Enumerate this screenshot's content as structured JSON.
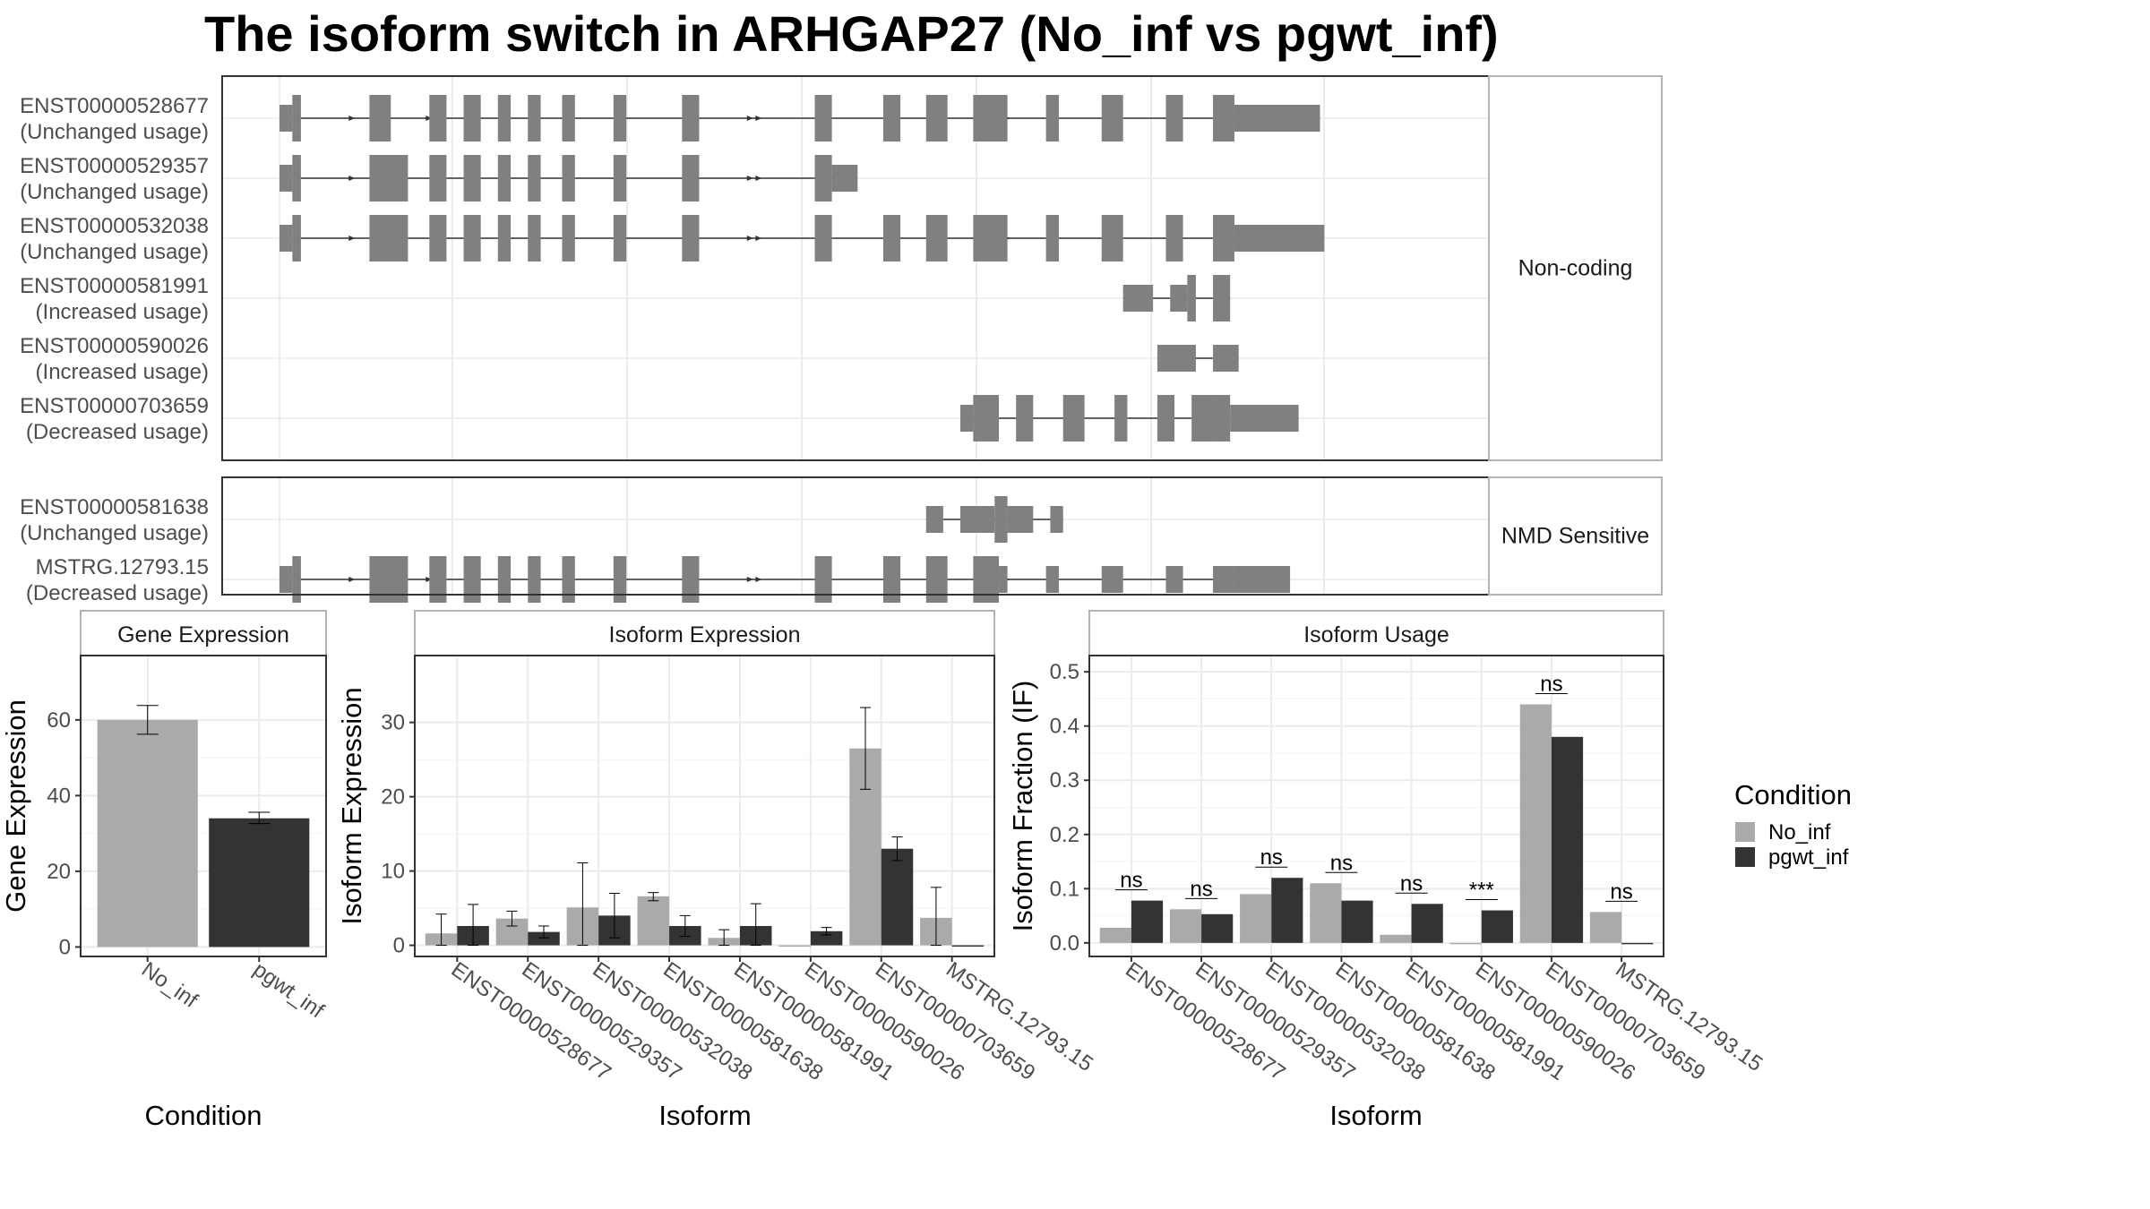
{
  "title": "The isoform switch in ARHGAP27 (No_inf vs pgwt_inf)",
  "colors": {
    "No_inf": "#aaaaaa",
    "pgwt_inf": "#333333",
    "exon": "#808080",
    "panel_border": "#333333",
    "strip_border": "#b3b3b3",
    "grid": "#ebebeb",
    "text_tick": "#4d4d4d"
  },
  "structure": {
    "groups": [
      {
        "label": "Non-coding",
        "tracks": [
          {
            "id": "ENST00000528677",
            "status": "(Unchanged usage)",
            "exons": [
              [
                0,
                3,
                0.3
              ],
              [
                3,
                5,
                0.5
              ],
              [
                21,
                26,
                0.5
              ],
              [
                35,
                39,
                0.5
              ],
              [
                43,
                47,
                0.5
              ],
              [
                51,
                54,
                0.5
              ],
              [
                58,
                61,
                0.5
              ],
              [
                66,
                69,
                0.5
              ],
              [
                78,
                81,
                0.5
              ],
              [
                94,
                98,
                0.5
              ],
              [
                125,
                129,
                0.5
              ],
              [
                141,
                145,
                0.5
              ],
              [
                151,
                156,
                0.5
              ],
              [
                162,
                170,
                0.5
              ],
              [
                179,
                182,
                0.5
              ],
              [
                192,
                197,
                0.5
              ],
              [
                207,
                211,
                0.5
              ],
              [
                218,
                223,
                0.5
              ],
              [
                223,
                243,
                0.3
              ]
            ],
            "arrows": [
              17,
              35,
              95,
              110,
              112,
              128,
              170,
              194,
              210
            ]
          },
          {
            "id": "ENST00000529357",
            "status": "(Unchanged usage)",
            "exons": [
              [
                0,
                3,
                0.3
              ],
              [
                3,
                5,
                0.5
              ],
              [
                21,
                30,
                0.5
              ],
              [
                35,
                39,
                0.5
              ],
              [
                43,
                47,
                0.5
              ],
              [
                51,
                54,
                0.5
              ],
              [
                58,
                61,
                0.5
              ],
              [
                66,
                69,
                0.5
              ],
              [
                78,
                81,
                0.5
              ],
              [
                94,
                98,
                0.5
              ],
              [
                125,
                129,
                0.5
              ],
              [
                129,
                135,
                0.3
              ]
            ],
            "arrows": [
              17,
              95,
              110,
              112,
              128
            ]
          },
          {
            "id": "ENST00000532038",
            "status": "(Unchanged usage)",
            "exons": [
              [
                0,
                3,
                0.3
              ],
              [
                3,
                5,
                0.5
              ],
              [
                21,
                30,
                0.5
              ],
              [
                35,
                39,
                0.5
              ],
              [
                43,
                47,
                0.5
              ],
              [
                51,
                54,
                0.5
              ],
              [
                58,
                61,
                0.5
              ],
              [
                66,
                69,
                0.5
              ],
              [
                78,
                81,
                0.5
              ],
              [
                94,
                98,
                0.5
              ],
              [
                125,
                129,
                0.5
              ],
              [
                141,
                145,
                0.5
              ],
              [
                151,
                156,
                0.5
              ],
              [
                162,
                170,
                0.5
              ],
              [
                179,
                182,
                0.5
              ],
              [
                192,
                197,
                0.5
              ],
              [
                207,
                211,
                0.5
              ],
              [
                218,
                223,
                0.5
              ],
              [
                223,
                244,
                0.3
              ]
            ],
            "arrows": [
              17,
              95,
              110,
              112,
              128,
              170,
              194,
              210
            ]
          },
          {
            "id": "ENST00000581991",
            "status": "(Increased usage)",
            "exons": [
              [
                197,
                204,
                0.3
              ],
              [
                208,
                212,
                0.3
              ],
              [
                212,
                214,
                0.5
              ],
              [
                218,
                222,
                0.5
              ]
            ],
            "arrows": []
          },
          {
            "id": "ENST00000590026",
            "status": "(Increased usage)",
            "exons": [
              [
                205,
                214,
                0.3
              ],
              [
                218,
                224,
                0.3
              ]
            ],
            "arrows": []
          },
          {
            "id": "ENST00000703659",
            "status": "(Decreased usage)",
            "exons": [
              [
                159,
                162,
                0.3
              ],
              [
                162,
                168,
                0.5
              ],
              [
                172,
                176,
                0.5
              ],
              [
                183,
                188,
                0.5
              ],
              [
                195,
                198,
                0.5
              ],
              [
                205,
                209,
                0.5
              ],
              [
                213,
                218,
                0.5
              ],
              [
                218,
                222,
                0.5
              ],
              [
                222,
                238,
                0.3
              ]
            ],
            "arrows": []
          }
        ]
      },
      {
        "label": "NMD Sensitive",
        "tracks": [
          {
            "id": "ENST00000581638",
            "status": "(Unchanged usage)",
            "exons": [
              [
                151,
                155,
                0.3
              ],
              [
                159,
                167,
                0.3
              ],
              [
                167,
                170,
                0.5
              ],
              [
                170,
                176,
                0.3
              ],
              [
                180,
                183,
                0.3
              ]
            ],
            "arrows": []
          },
          {
            "id": "MSTRG.12793.15",
            "status": "(Decreased usage)",
            "exons": [
              [
                0,
                3,
                0.3
              ],
              [
                3,
                5,
                0.5
              ],
              [
                21,
                30,
                0.5
              ],
              [
                35,
                39,
                0.5
              ],
              [
                43,
                47,
                0.5
              ],
              [
                51,
                54,
                0.5
              ],
              [
                58,
                61,
                0.5
              ],
              [
                66,
                69,
                0.5
              ],
              [
                78,
                81,
                0.5
              ],
              [
                94,
                98,
                0.5
              ],
              [
                125,
                129,
                0.5
              ],
              [
                141,
                145,
                0.5
              ],
              [
                151,
                156,
                0.5
              ],
              [
                162,
                168,
                0.5
              ],
              [
                168,
                170,
                0.3
              ],
              [
                179,
                182,
                0.3
              ],
              [
                192,
                197,
                0.3
              ],
              [
                207,
                211,
                0.3
              ],
              [
                218,
                223,
                0.3
              ],
              [
                223,
                236,
                0.3
              ]
            ],
            "arrows": [
              17,
              35,
              95,
              110,
              112,
              128,
              170
            ]
          }
        ]
      }
    ]
  },
  "chart_data": [
    {
      "type": "bar",
      "strip": "Gene Expression",
      "xlabel": "Condition",
      "ylabel": "Gene Expression",
      "ylim": [
        -2.5,
        77
      ],
      "yticks": [
        0,
        20,
        40,
        60
      ],
      "categories": [
        "No_inf",
        "pgwt_inf"
      ],
      "series": [
        {
          "name": "No_inf",
          "values": [
            60,
            null
          ],
          "err": [
            [
              56.2,
              63.8
            ],
            null
          ]
        },
        {
          "name": "pgwt_inf",
          "values": [
            null,
            34
          ],
          "err": [
            null,
            [
              32.6,
              35.6
            ]
          ]
        }
      ]
    },
    {
      "type": "bar",
      "strip": "Isoform Expression",
      "xlabel": "Isoform",
      "ylabel": "Isoform Expression",
      "ylim": [
        -1.5,
        39
      ],
      "yticks": [
        0,
        10,
        20,
        30
      ],
      "categories": [
        "ENST00000528677",
        "ENST00000529357",
        "ENST00000532038",
        "ENST00000581638",
        "ENST00000581991",
        "ENST00000590026",
        "ENST00000703659",
        "MSTRG.12793.15"
      ],
      "series": [
        {
          "name": "No_inf",
          "values": [
            1.6,
            3.6,
            5.1,
            6.6,
            1.0,
            0,
            26.5,
            3.7
          ],
          "err": [
            [
              0,
              4.2
            ],
            [
              2.6,
              4.6
            ],
            [
              0,
              11.1
            ],
            [
              6.0,
              7.1
            ],
            [
              0,
              2.1
            ],
            null,
            [
              21.0,
              32.0
            ],
            [
              0,
              7.8
            ]
          ]
        },
        {
          "name": "pgwt_inf",
          "values": [
            2.6,
            1.8,
            4.0,
            2.6,
            2.6,
            1.9,
            13.0,
            0
          ],
          "err": [
            [
              0,
              5.5
            ],
            [
              1.0,
              2.6
            ],
            [
              1.0,
              7.0
            ],
            [
              1.2,
              4.0
            ],
            [
              0,
              5.6
            ],
            [
              1.4,
              2.4
            ],
            [
              11.4,
              14.6
            ],
            null
          ]
        }
      ]
    },
    {
      "type": "bar",
      "strip": "Isoform Usage",
      "xlabel": "Isoform",
      "ylabel": "Isoform Fraction (IF)",
      "ylim": [
        -0.025,
        0.53
      ],
      "yticks": [
        0.0,
        0.1,
        0.2,
        0.3,
        0.4,
        0.5
      ],
      "ytick_labels": [
        "0.0",
        "0.1",
        "0.2",
        "0.3",
        "0.4",
        "0.5"
      ],
      "categories": [
        "ENST00000528677",
        "ENST00000529357",
        "ENST00000532038",
        "ENST00000581638",
        "ENST00000581991",
        "ENST00000590026",
        "ENST00000703659",
        "MSTRG.12793.15"
      ],
      "series": [
        {
          "name": "No_inf",
          "values": [
            0.028,
            0.062,
            0.09,
            0.11,
            0.015,
            0,
            0.44,
            0.057
          ]
        },
        {
          "name": "pgwt_inf",
          "values": [
            0.078,
            0.053,
            0.12,
            0.078,
            0.072,
            0.06,
            0.38,
            0
          ]
        }
      ],
      "significance": [
        "ns",
        "ns",
        "ns",
        "ns",
        "ns",
        "***",
        "ns",
        "ns"
      ]
    }
  ],
  "legend": {
    "title": "Condition",
    "items": [
      {
        "name": "No_inf",
        "color": "#aaaaaa"
      },
      {
        "name": "pgwt_inf",
        "color": "#333333"
      }
    ]
  }
}
